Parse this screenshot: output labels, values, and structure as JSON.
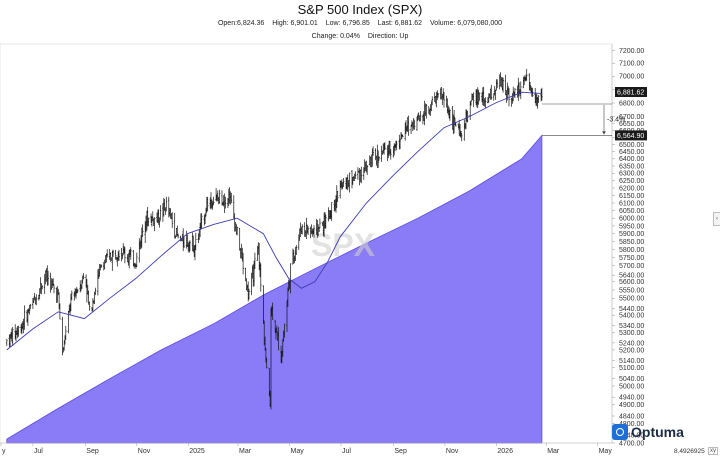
{
  "header": {
    "title": "S&P 500 Index (SPX)",
    "open_label": "Open:6,824.36",
    "high_label": "High: 6,901.01",
    "low_label": "Low: 6,796.85",
    "last_label": "Last: 6,881.62",
    "volume_label": "Volume: 6,079,080,000",
    "change_label": "Change: 0.04%",
    "direction_label": "Direction: Up"
  },
  "watermark": "SPX",
  "logo_text": "Optuma",
  "scale_readout": "8.4926925",
  "scale_button": "xy",
  "colors": {
    "price": "#111111",
    "moving_average": "#3b3bb0",
    "area_fill": "#8a7cf6",
    "area_edge": "#5a4be0",
    "last_price_box": "#1a1a1a",
    "band_box": "#1a1a1a"
  },
  "chart_data": {
    "type": "line",
    "title": "S&P 500 Index (SPX)",
    "xlabel": "",
    "ylabel": "",
    "y_scale": "log",
    "ylim": [
      4700,
      7250
    ],
    "grid": false,
    "x_tick_labels": [
      "y",
      "Jul",
      "Sep",
      "Nov",
      "2025",
      "Mar",
      "May",
      "Jul",
      "Sep",
      "Nov",
      "2026",
      "Mar",
      "May"
    ],
    "y_tick_labels": [
      "7200.00",
      "7100.00",
      "7000.00",
      "6900.00",
      "6800.00",
      "6700.00",
      "6650.00",
      "6600.00",
      "6550.00",
      "6500.00",
      "6450.00",
      "6400.00",
      "6350.00",
      "6300.00",
      "6250.00",
      "6200.00",
      "6150.00",
      "6100.00",
      "6050.00",
      "6000.00",
      "5950.00",
      "5900.00",
      "5850.00",
      "5800.00",
      "5750.00",
      "5700.00",
      "5640.00",
      "5600.00",
      "5550.00",
      "5500.00",
      "5440.00",
      "5400.00",
      "5340.00",
      "5300.00",
      "5240.00",
      "5200.00",
      "5140.00",
      "5100.00",
      "5040.00",
      "5000.00",
      "4940.00",
      "4900.00",
      "4840.00",
      "4800.00",
      "4740.00",
      "4700.00"
    ],
    "series": [
      {
        "name": "",
        "kind": "price",
        "x": [
          "2024-05-31",
          "2024-06-15",
          "2024-07-01",
          "2024-07-16",
          "2024-07-31",
          "2024-08-05",
          "2024-08-15",
          "2024-09-01",
          "2024-09-06",
          "2024-09-20",
          "2024-10-10",
          "2024-10-31",
          "2024-11-11",
          "2024-11-25",
          "2024-12-06",
          "2024-12-20",
          "2025-01-10",
          "2025-01-24",
          "2025-02-19",
          "2025-03-04",
          "2025-03-13",
          "2025-03-25",
          "2025-04-04",
          "2025-04-08",
          "2025-04-09",
          "2025-04-21",
          "2025-05-02",
          "2025-05-15",
          "2025-05-30",
          "2025-06-13",
          "2025-06-30",
          "2025-07-15",
          "2025-07-31",
          "2025-08-15",
          "2025-08-31",
          "2025-09-15",
          "2025-09-30",
          "2025-10-10",
          "2025-10-27",
          "2025-11-20",
          "2025-12-05",
          "2025-12-20",
          "2026-01-05",
          "2026-01-20",
          "2026-02-05",
          "2026-02-18",
          "2026-02-24"
        ],
        "values": [
          5250,
          5320,
          5470,
          5640,
          5520,
          5180,
          5480,
          5650,
          5420,
          5700,
          5800,
          5720,
          6000,
          5990,
          6080,
          5870,
          5830,
          6110,
          6144,
          5790,
          5520,
          5790,
          5075,
          4920,
          5450,
          5160,
          5680,
          5940,
          5910,
          5980,
          6200,
          6270,
          6350,
          6430,
          6470,
          6600,
          6690,
          6750,
          6870,
          6550,
          6850,
          6820,
          6950,
          6850,
          6960,
          6830,
          6882
        ]
      },
      {
        "name": "",
        "kind": "moving_average",
        "x": [
          "2024-05-31",
          "2024-07-01",
          "2024-07-31",
          "2024-08-31",
          "2024-09-30",
          "2024-10-31",
          "2024-11-30",
          "2024-12-31",
          "2025-01-31",
          "2025-02-28",
          "2025-03-31",
          "2025-04-15",
          "2025-04-30",
          "2025-05-15",
          "2025-05-31",
          "2025-06-15",
          "2025-06-30",
          "2025-07-31",
          "2025-08-31",
          "2025-09-30",
          "2025-10-31",
          "2025-11-30",
          "2025-12-31",
          "2026-01-31",
          "2026-02-24"
        ],
        "values": [
          5200,
          5320,
          5420,
          5380,
          5500,
          5620,
          5760,
          5900,
          5960,
          6000,
          5900,
          5750,
          5620,
          5560,
          5600,
          5720,
          5880,
          6100,
          6280,
          6450,
          6620,
          6700,
          6800,
          6880,
          6870
        ]
      },
      {
        "name": "",
        "kind": "area",
        "x": [
          "2024-05-31",
          "2024-07-31",
          "2024-09-30",
          "2024-11-30",
          "2025-01-31",
          "2025-03-31",
          "2025-05-31",
          "2025-07-31",
          "2025-09-30",
          "2025-11-30",
          "2026-01-31",
          "2026-02-24"
        ],
        "values": [
          4720,
          4880,
          5040,
          5200,
          5350,
          5520,
          5680,
          5840,
          6000,
          6180,
          6400,
          6565
        ]
      }
    ],
    "annotations": {
      "last_price": "6,881.62",
      "band_low": "6,564.90",
      "band_pct": "-3.4%"
    }
  }
}
